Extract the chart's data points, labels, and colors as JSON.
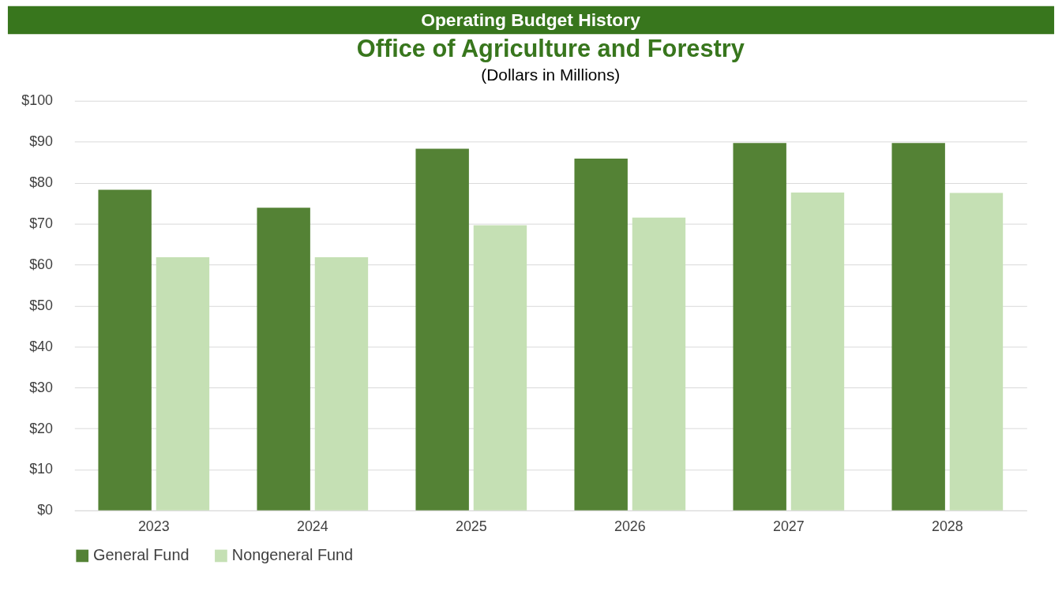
{
  "chart_data": {
    "type": "bar",
    "title": "Office of Agriculture and Forestry",
    "subtitle": "(Dollars in Millions)",
    "annotations": [
      "Operating Budget History"
    ],
    "categories": [
      "2023",
      "2024",
      "2025",
      "2026",
      "2027",
      "2028"
    ],
    "series": [
      {
        "name": "General Fund",
        "color": "#548235",
        "values": [
          78.3,
          73.9,
          88.3,
          85.9,
          89.7,
          89.7
        ]
      },
      {
        "name": "Nongeneral Fund",
        "color": "#c5e0b4",
        "values": [
          61.8,
          61.8,
          69.6,
          71.5,
          77.6,
          77.5
        ]
      }
    ],
    "ylim": [
      0,
      100
    ],
    "yticks": [
      {
        "value": 0,
        "label": "$0"
      },
      {
        "value": 10,
        "label": "$10"
      },
      {
        "value": 20,
        "label": "$20"
      },
      {
        "value": 30,
        "label": "$30"
      },
      {
        "value": 40,
        "label": "$40"
      },
      {
        "value": 50,
        "label": "$50"
      },
      {
        "value": 60,
        "label": "$60"
      },
      {
        "value": 70,
        "label": "$70"
      },
      {
        "value": 80,
        "label": "$80"
      },
      {
        "value": 90,
        "label": "$90"
      },
      {
        "value": 100,
        "label": "$100"
      }
    ],
    "grid": "y",
    "legend": "bottom"
  }
}
